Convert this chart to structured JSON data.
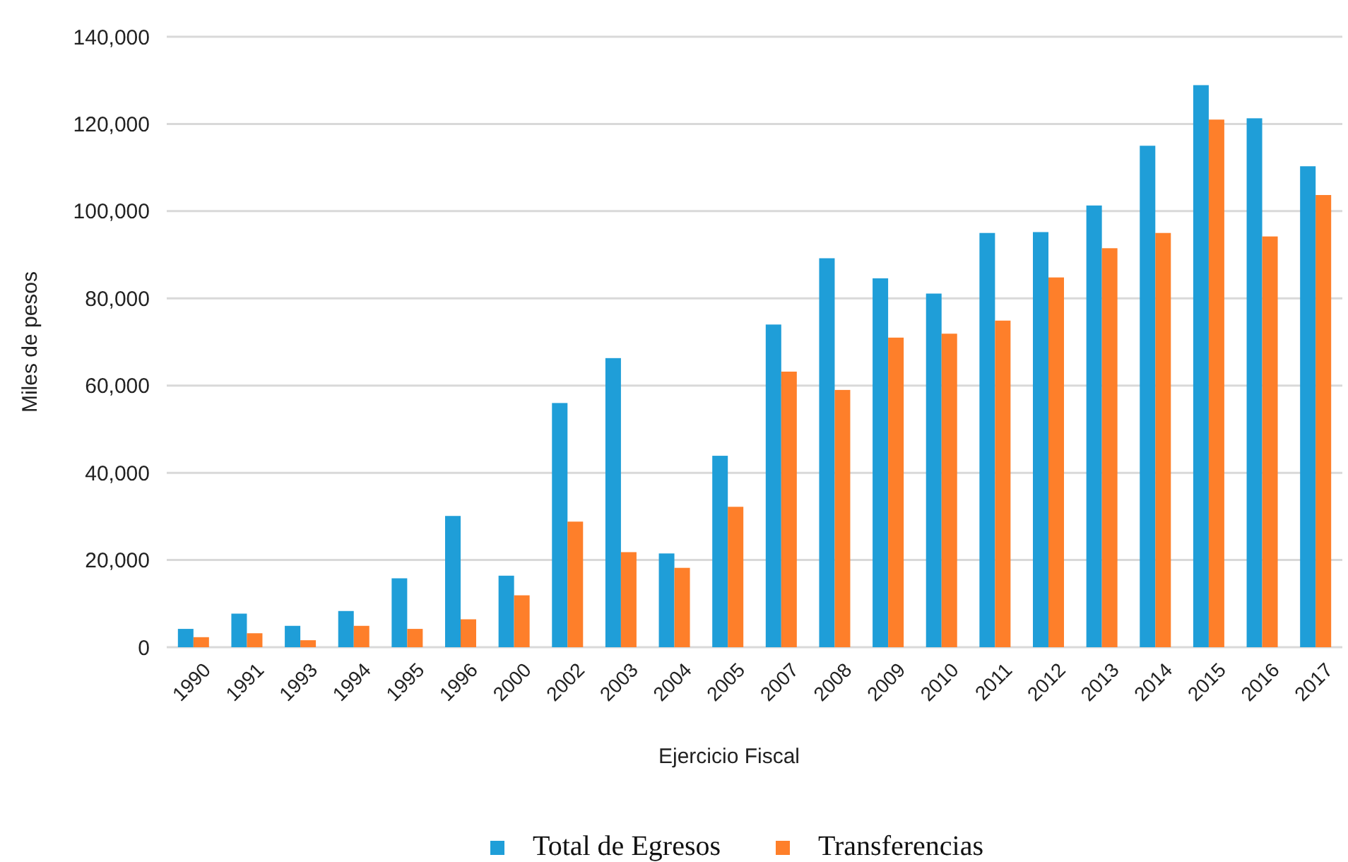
{
  "chart_data": {
    "type": "bar",
    "xlabel": "Ejercicio Fiscal",
    "ylabel": "Miles de pesos",
    "categories": [
      "1990",
      "1991",
      "1993",
      "1994",
      "1995",
      "1996",
      "2000",
      "2002",
      "2003",
      "2004",
      "2005",
      "2007",
      "2008",
      "2009",
      "2010",
      "2011",
      "2012",
      "2013",
      "2014",
      "2015",
      "2016",
      "2017"
    ],
    "series": [
      {
        "name": "Total de Egresos",
        "color": "#1f9ed8",
        "values": [
          4200,
          7700,
          4900,
          8300,
          15800,
          30100,
          16400,
          56000,
          66300,
          21500,
          43900,
          74000,
          89200,
          84600,
          81100,
          95000,
          95200,
          101300,
          115000,
          128900,
          121300,
          110300
        ]
      },
      {
        "name": "Transferencias",
        "color": "#fe7f2a",
        "values": [
          2300,
          3200,
          1600,
          4900,
          4200,
          6400,
          11900,
          28800,
          21800,
          18200,
          32200,
          63200,
          59000,
          71000,
          71900,
          74900,
          84800,
          91500,
          95000,
          121000,
          94200,
          103700
        ]
      }
    ],
    "ylim": [
      0,
      140000
    ],
    "yticks": [
      {
        "value": 0,
        "label": "0"
      },
      {
        "value": 20000,
        "label": "20,000"
      },
      {
        "value": 40000,
        "label": "40,000"
      },
      {
        "value": 60000,
        "label": "60,000"
      },
      {
        "value": 80000,
        "label": "80,000"
      },
      {
        "value": 100000,
        "label": "100,000"
      },
      {
        "value": 120000,
        "label": "120,000"
      },
      {
        "value": 140000,
        "label": "140,000"
      }
    ],
    "grid": "y",
    "legend": "bottom"
  }
}
